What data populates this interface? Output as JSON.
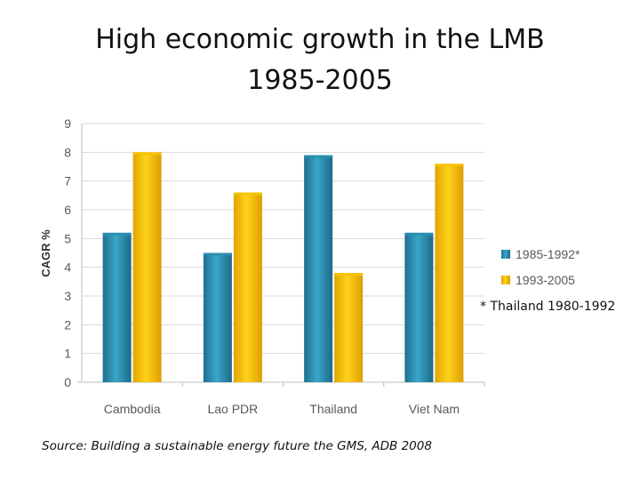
{
  "slide": {
    "title_line1": "High economic growth in the LMB",
    "title_line2": "1985-2005",
    "source": "Source: Building a sustainable energy future the GMS, ADB 2008",
    "footnote": "* Thailand 1980-1992"
  },
  "colors": {
    "series1": "#2b8fb2",
    "series2": "#f6c200",
    "grid": "#d9d9d9",
    "axis_text": "#595959"
  },
  "chart_data": {
    "type": "bar",
    "title": "",
    "xlabel": "",
    "ylabel": "CAGR %",
    "ylim": [
      0,
      9
    ],
    "yticks": [
      0,
      1,
      2,
      3,
      4,
      5,
      6,
      7,
      8,
      9
    ],
    "grid": true,
    "legend_position": "right",
    "categories": [
      "Cambodia",
      "Lao PDR",
      "Thailand",
      "Viet Nam"
    ],
    "series": [
      {
        "name": "1985-1992*",
        "values": [
          5.2,
          4.5,
          7.9,
          5.2
        ]
      },
      {
        "name": "1993-2005",
        "values": [
          8.0,
          6.6,
          3.8,
          7.6
        ]
      }
    ]
  }
}
